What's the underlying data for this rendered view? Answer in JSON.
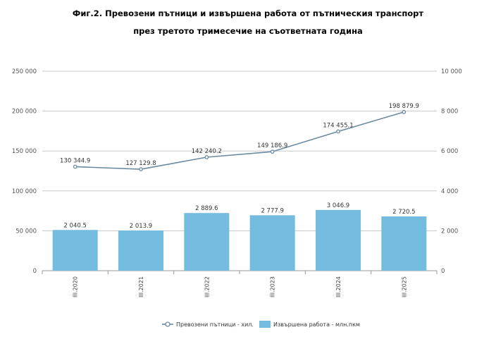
{
  "title_line1": "Фиг.2. Превозени пътници и извършена работа от пътническия транспорт",
  "title_line2": "през третото тримесечие на съответната година",
  "chart_data": {
    "type": "bar+line",
    "categories": [
      "III.2020",
      "III.2021",
      "III.2022",
      "III.2023",
      "III.2024",
      "III.2025"
    ],
    "series": [
      {
        "name": "Превозени пътници - хил.",
        "type": "line",
        "axis": "left",
        "values": [
          130344.9,
          127129.8,
          142240.2,
          149186.9,
          174455.1,
          198879.9
        ],
        "labels": [
          "130 344.9",
          "127 129.8",
          "142 240.2",
          "149 186.9",
          "174 455.1",
          "198 879.9"
        ],
        "color": "#6a8aa0"
      },
      {
        "name": "Извършена работа - млн.пкм",
        "type": "bar",
        "axis": "right",
        "values": [
          2040.5,
          2013.9,
          2889.6,
          2777.9,
          3046.9,
          2720.5
        ],
        "labels": [
          "2 040.5",
          "2 013.9",
          "2 889.6",
          "2 777.9",
          "3 046.9",
          "2 720.5"
        ],
        "color": "#74bcdf"
      }
    ],
    "y_left": {
      "min": 0,
      "max": 250000,
      "ticks": [
        0,
        50000,
        100000,
        150000,
        200000,
        250000
      ],
      "tick_labels": [
        "0",
        "50 000",
        "100 000",
        "150 000",
        "200 000",
        "250 000"
      ]
    },
    "y_right": {
      "min": 0,
      "max": 10000,
      "ticks": [
        0,
        2000,
        4000,
        6000,
        8000,
        10000
      ],
      "tick_labels": [
        "0",
        "2 000",
        "4 000",
        "6 000",
        "8 000",
        "10 000"
      ]
    },
    "grid": true,
    "legend": "bottom"
  }
}
